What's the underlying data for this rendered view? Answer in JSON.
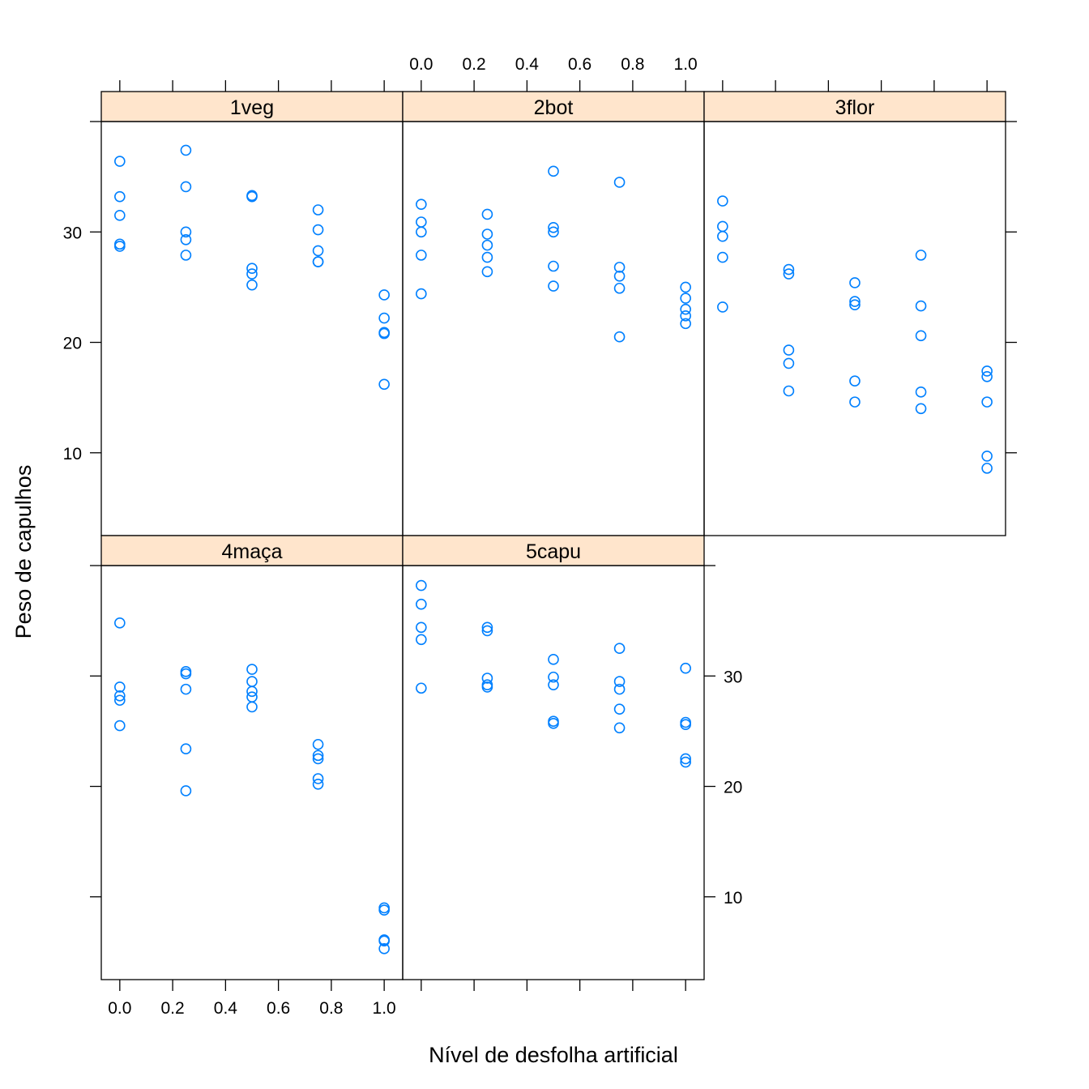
{
  "chart_data": {
    "type": "scatter",
    "xlabel": "Nível de desfolha artificial",
    "ylabel": "Peso de capulhos",
    "xlim": [
      -0.07,
      1.07
    ],
    "ylim": [
      2.5,
      40
    ],
    "x_ticks": [
      0.0,
      0.2,
      0.4,
      0.6,
      0.8,
      1.0
    ],
    "x_tick_labels": [
      "0.0",
      "0.2",
      "0.4",
      "0.6",
      "0.8",
      "1.0"
    ],
    "y_ticks": [
      10,
      20,
      30
    ],
    "y_tick_labels": [
      "10",
      "20",
      "30"
    ],
    "grid": false,
    "layout": "3 columns x 2 rows",
    "colors": {
      "points": "#0080ff",
      "strip_fill": "#ffe5cc",
      "frame": "#000000"
    },
    "panels": [
      {
        "name": "1veg",
        "points": [
          [
            0,
            36.4
          ],
          [
            0,
            33.2
          ],
          [
            0,
            31.5
          ],
          [
            0,
            28.9
          ],
          [
            0,
            28.7
          ],
          [
            0.25,
            37.4
          ],
          [
            0.25,
            34.1
          ],
          [
            0.25,
            30.0
          ],
          [
            0.25,
            29.3
          ],
          [
            0.25,
            27.9
          ],
          [
            0.5,
            33.3
          ],
          [
            0.5,
            33.2
          ],
          [
            0.5,
            26.7
          ],
          [
            0.5,
            26.2
          ],
          [
            0.5,
            25.2
          ],
          [
            0.75,
            32.0
          ],
          [
            0.75,
            30.2
          ],
          [
            0.75,
            28.3
          ],
          [
            0.75,
            27.3
          ],
          [
            0.75,
            27.3
          ],
          [
            1,
            24.3
          ],
          [
            1,
            22.2
          ],
          [
            1,
            20.9
          ],
          [
            1,
            20.8
          ],
          [
            1,
            16.2
          ]
        ]
      },
      {
        "name": "2bot",
        "points": [
          [
            0,
            32.5
          ],
          [
            0,
            30.9
          ],
          [
            0,
            30.0
          ],
          [
            0,
            27.9
          ],
          [
            0,
            24.4
          ],
          [
            0.25,
            31.6
          ],
          [
            0.25,
            29.8
          ],
          [
            0.25,
            28.8
          ],
          [
            0.25,
            27.7
          ],
          [
            0.25,
            26.4
          ],
          [
            0.5,
            35.5
          ],
          [
            0.5,
            30.4
          ],
          [
            0.5,
            30.0
          ],
          [
            0.5,
            26.9
          ],
          [
            0.5,
            25.1
          ],
          [
            0.75,
            34.5
          ],
          [
            0.75,
            26.8
          ],
          [
            0.75,
            26.0
          ],
          [
            0.75,
            24.9
          ],
          [
            0.75,
            20.5
          ],
          [
            1,
            25.0
          ],
          [
            1,
            24.0
          ],
          [
            1,
            23.0
          ],
          [
            1,
            22.4
          ],
          [
            1,
            21.7
          ]
        ]
      },
      {
        "name": "3flor",
        "points": [
          [
            0,
            32.8
          ],
          [
            0,
            30.5
          ],
          [
            0,
            29.6
          ],
          [
            0,
            27.7
          ],
          [
            0,
            23.2
          ],
          [
            0.25,
            26.6
          ],
          [
            0.25,
            26.2
          ],
          [
            0.25,
            19.3
          ],
          [
            0.25,
            18.1
          ],
          [
            0.25,
            15.6
          ],
          [
            0.5,
            25.4
          ],
          [
            0.5,
            23.7
          ],
          [
            0.5,
            23.4
          ],
          [
            0.5,
            16.5
          ],
          [
            0.5,
            14.6
          ],
          [
            0.75,
            27.9
          ],
          [
            0.75,
            23.3
          ],
          [
            0.75,
            20.6
          ],
          [
            0.75,
            15.5
          ],
          [
            0.75,
            14.0
          ],
          [
            1,
            17.4
          ],
          [
            1,
            16.9
          ],
          [
            1,
            14.6
          ],
          [
            1,
            9.7
          ],
          [
            1,
            8.6
          ]
        ]
      },
      {
        "name": "4maça",
        "points": [
          [
            0,
            34.8
          ],
          [
            0,
            29.0
          ],
          [
            0,
            28.2
          ],
          [
            0,
            27.8
          ],
          [
            0,
            25.5
          ],
          [
            0.25,
            30.4
          ],
          [
            0.25,
            30.2
          ],
          [
            0.25,
            28.8
          ],
          [
            0.25,
            23.4
          ],
          [
            0.25,
            19.6
          ],
          [
            0.5,
            30.6
          ],
          [
            0.5,
            29.5
          ],
          [
            0.5,
            28.6
          ],
          [
            0.5,
            28.1
          ],
          [
            0.5,
            27.2
          ],
          [
            0.75,
            23.8
          ],
          [
            0.75,
            22.8
          ],
          [
            0.75,
            22.5
          ],
          [
            0.75,
            20.7
          ],
          [
            0.75,
            20.2
          ],
          [
            1,
            9.0
          ],
          [
            1,
            8.8
          ],
          [
            1,
            6.1
          ],
          [
            1,
            6.0
          ],
          [
            1,
            5.3
          ]
        ]
      },
      {
        "name": "5capu",
        "points": [
          [
            0,
            38.2
          ],
          [
            0,
            36.5
          ],
          [
            0,
            34.4
          ],
          [
            0,
            33.3
          ],
          [
            0,
            28.9
          ],
          [
            0.25,
            34.4
          ],
          [
            0.25,
            34.1
          ],
          [
            0.25,
            29.8
          ],
          [
            0.25,
            29.2
          ],
          [
            0.25,
            29.0
          ],
          [
            0.5,
            31.5
          ],
          [
            0.5,
            29.9
          ],
          [
            0.5,
            29.2
          ],
          [
            0.5,
            25.9
          ],
          [
            0.5,
            25.7
          ],
          [
            0.75,
            32.5
          ],
          [
            0.75,
            29.5
          ],
          [
            0.75,
            28.8
          ],
          [
            0.75,
            27.0
          ],
          [
            0.75,
            25.3
          ],
          [
            1,
            30.7
          ],
          [
            1,
            25.8
          ],
          [
            1,
            25.6
          ],
          [
            1,
            22.5
          ],
          [
            1,
            22.2
          ]
        ]
      }
    ]
  }
}
